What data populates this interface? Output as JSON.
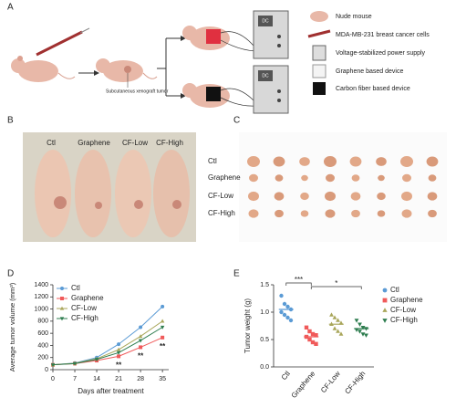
{
  "panel_labels": [
    "A",
    "B",
    "C",
    "D",
    "E"
  ],
  "diagram": {
    "xenograft_label": "Subcutaneous xenograft tumor",
    "device_label": "DC",
    "legend": [
      "Nude mouse",
      "MDA-MB-231 breast cancer cells",
      "Voltage-stabilized power supply",
      "Graphene based device",
      "Carbon fiber based device"
    ]
  },
  "photo_b": {
    "columns": [
      "Ctl",
      "Graphene",
      "CF-Low",
      "CF-High"
    ]
  },
  "photo_c": {
    "rows": [
      "Ctl",
      "Graphene",
      "CF-Low",
      "CF-High"
    ]
  },
  "chart_data": [
    {
      "type": "line",
      "ylabel": "Average tumor volume (mm³)",
      "xlabel": "Days after treatment",
      "x": [
        0,
        7,
        14,
        21,
        28,
        35
      ],
      "xlim": [
        0,
        37
      ],
      "xticks": [
        0,
        7,
        14,
        21,
        28,
        35
      ],
      "ylim": [
        0,
        1400
      ],
      "yticks": [
        0,
        200,
        400,
        600,
        800,
        1000,
        1200,
        1400
      ],
      "legend": "upper left",
      "series": [
        {
          "name": "Ctl",
          "color": "#5b9bd5",
          "marker": "circle",
          "values": [
            80,
            110,
            200,
            420,
            700,
            1040
          ]
        },
        {
          "name": "Graphene",
          "color": "#f05a5a",
          "marker": "square",
          "values": [
            80,
            100,
            150,
            220,
            370,
            530
          ]
        },
        {
          "name": "CF-Low",
          "color": "#a9a65a",
          "marker": "triangle",
          "values": [
            80,
            105,
            180,
            330,
            550,
            800
          ]
        },
        {
          "name": "CF-High",
          "color": "#2e7d4f",
          "marker": "triangle-down",
          "values": [
            80,
            100,
            170,
            280,
            480,
            700
          ]
        }
      ],
      "annotations": [
        {
          "text": "**",
          "x": 21
        },
        {
          "text": "**",
          "x": 28
        },
        {
          "text": "**",
          "x": 35
        }
      ]
    },
    {
      "type": "strip",
      "ylabel": "Tumor weight (g)",
      "categories": [
        "Ctl",
        "Graphene",
        "CF-Low",
        "CF-High"
      ],
      "ylim": [
        0,
        1.5
      ],
      "yticks": [
        {
          "value": 0,
          "label": "0.0"
        },
        0.5,
        {
          "value": 1,
          "label": "1.0"
        },
        1.5
      ],
      "legend": "right",
      "series": [
        {
          "name": "Ctl",
          "color": "#5b9bd5",
          "marker": "circle",
          "mean": 1.05,
          "values": [
            1.3,
            1.15,
            1.1,
            1.05,
            1.0,
            0.95,
            0.9,
            0.85
          ]
        },
        {
          "name": "Graphene",
          "color": "#f05a5a",
          "marker": "square",
          "mean": 0.55,
          "values": [
            0.72,
            0.65,
            0.6,
            0.58,
            0.55,
            0.5,
            0.45,
            0.42
          ]
        },
        {
          "name": "CF-Low",
          "color": "#a9a65a",
          "marker": "triangle",
          "mean": 0.78,
          "values": [
            0.95,
            0.9,
            0.85,
            0.8,
            0.78,
            0.7,
            0.65,
            0.6
          ]
        },
        {
          "name": "CF-High",
          "color": "#2e7d4f",
          "marker": "triangle-down",
          "mean": 0.7,
          "values": [
            0.85,
            0.78,
            0.72,
            0.7,
            0.68,
            0.65,
            0.6,
            0.58
          ]
        }
      ],
      "annotations": [
        {
          "text": "***",
          "from": 0,
          "to": 1
        },
        {
          "text": "*",
          "from": 1,
          "to": 3
        }
      ]
    }
  ]
}
